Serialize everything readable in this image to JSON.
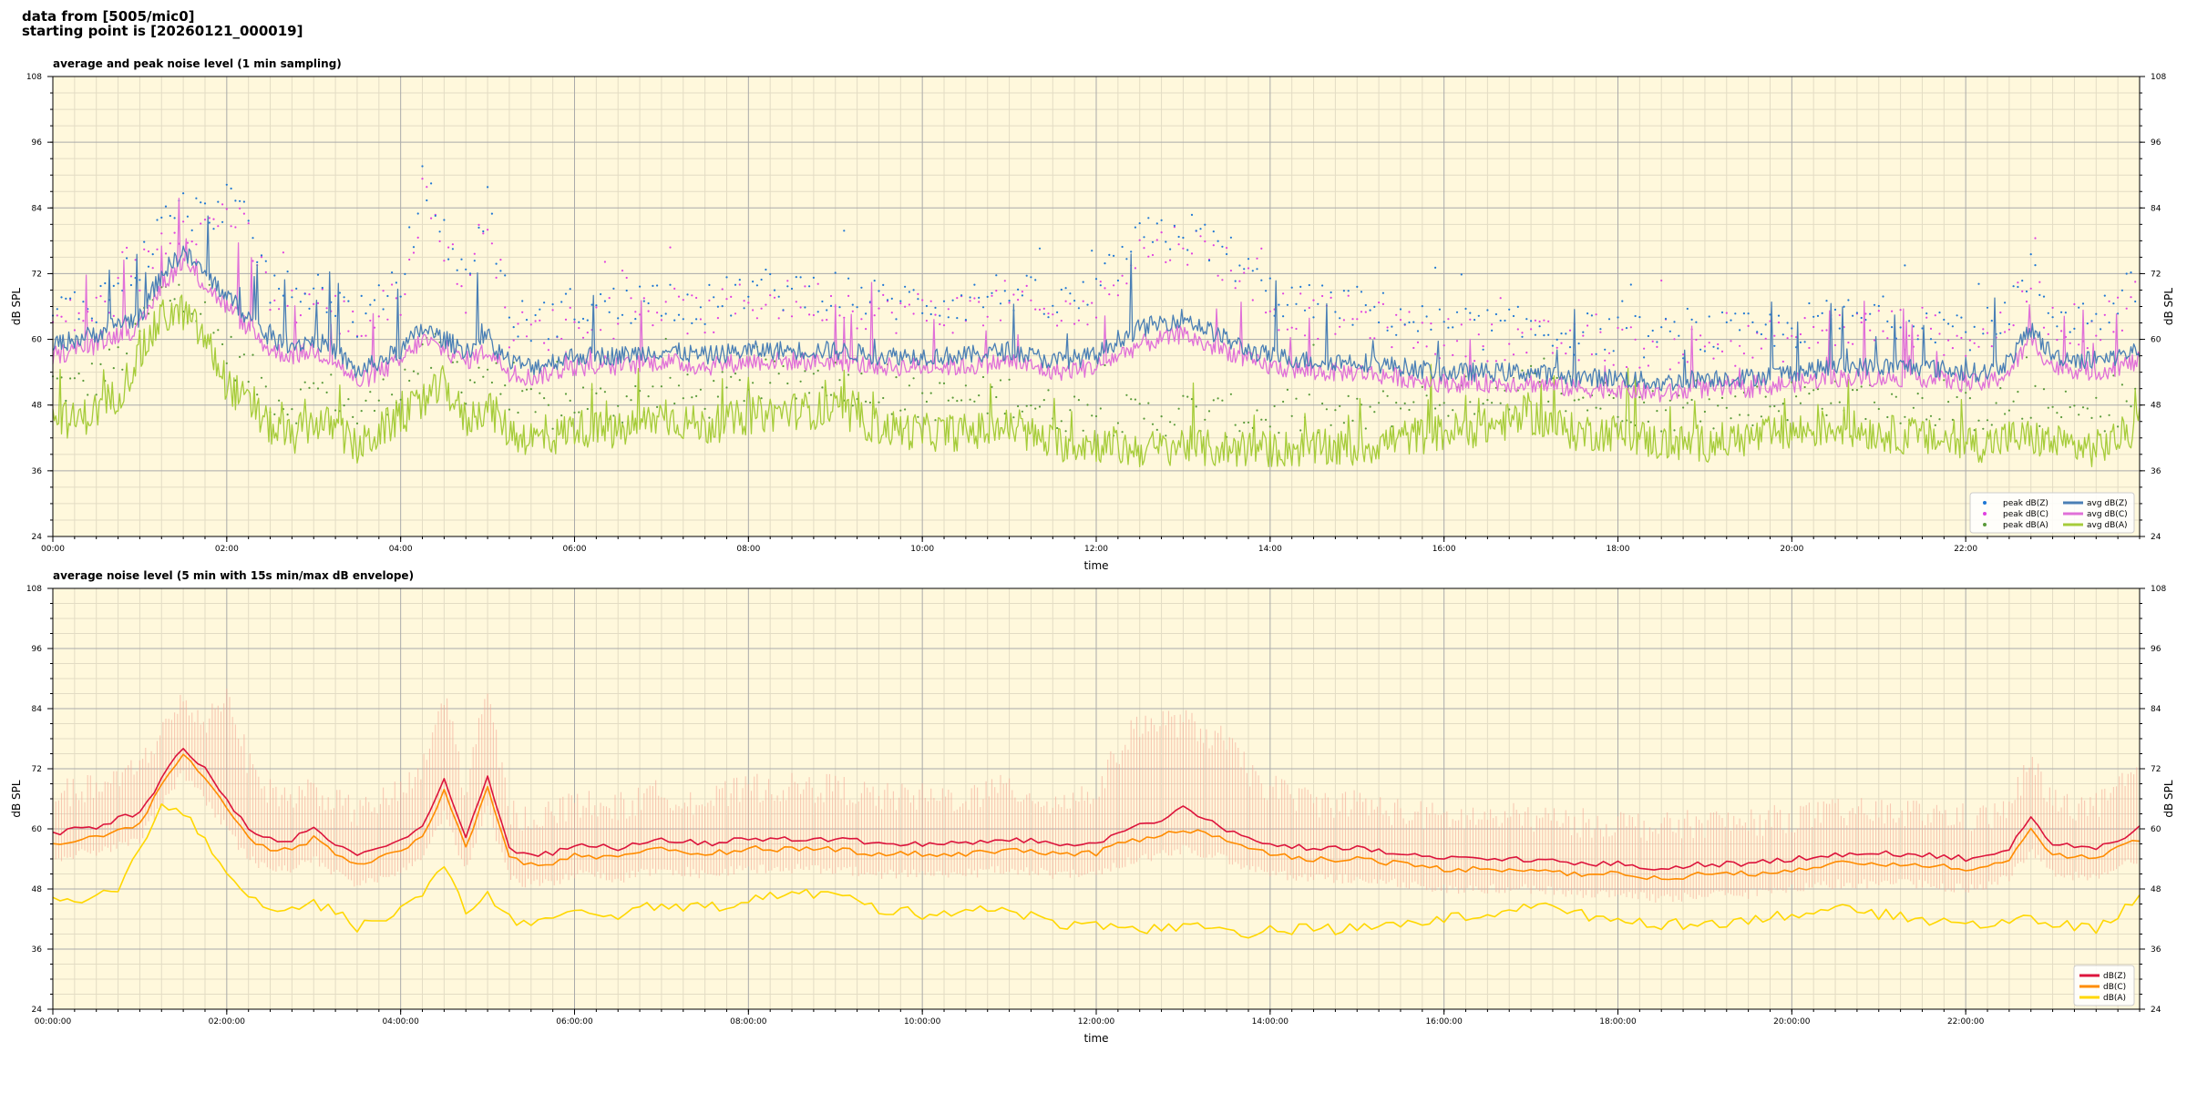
{
  "header": {
    "line1": "data from [5005/mic0]",
    "line2": "starting point is [20260121_000019]"
  },
  "colors": {
    "plot_bg": "#fff8dc",
    "grid_major": "#aaaaaa",
    "grid_minor": "#e3dcc4",
    "peak_z": "#1f77d4",
    "peak_c": "#e040e0",
    "peak_a": "#5a9a3a",
    "avg_z": "#4a7fb5",
    "avg_c": "#e070d8",
    "avg_a": "#a6cc3a",
    "z_5min": "#dc143c",
    "c_5min": "#ff8c00",
    "a_5min": "#ffd700",
    "envelope": "#f4a896"
  },
  "chart_data": [
    {
      "type": "line",
      "title": "average and peak noise level (1 min sampling)",
      "xlabel": "time",
      "ylabel": "dB SPL",
      "ylabel_right": "dB SPL",
      "ylim": [
        24,
        108
      ],
      "y_ticks": [
        "24",
        "36",
        "48",
        "60",
        "72",
        "84",
        "96",
        "108"
      ],
      "x_range_hours": [
        0,
        24
      ],
      "x_ticks": [
        "00:00",
        "02:00",
        "04:00",
        "06:00",
        "08:00",
        "10:00",
        "12:00",
        "14:00",
        "16:00",
        "18:00",
        "20:00",
        "22:00"
      ],
      "grid": true,
      "legend_position": "lower-right",
      "legend": [
        "peak dB(Z)",
        "peak dB(C)",
        "peak dB(A)",
        "avg dB(Z)",
        "avg dB(C)",
        "avg dB(A)"
      ],
      "x": [
        0,
        0.25,
        0.5,
        0.75,
        1,
        1.25,
        1.5,
        1.75,
        2,
        2.25,
        2.5,
        2.75,
        3,
        3.25,
        3.5,
        3.75,
        4,
        4.25,
        4.5,
        4.75,
        5,
        5.25,
        5.5,
        5.75,
        6,
        6.5,
        7,
        7.5,
        8,
        8.5,
        9,
        9.5,
        10,
        10.5,
        11,
        11.5,
        12,
        12.25,
        12.5,
        12.75,
        13,
        13.25,
        13.5,
        13.75,
        14,
        14.5,
        15,
        15.5,
        16,
        16.5,
        17,
        17.5,
        18,
        18.5,
        19,
        19.5,
        20,
        20.5,
        21,
        21.5,
        22,
        22.25,
        22.5,
        22.75,
        23,
        23.5,
        24
      ],
      "series": [
        {
          "name": "avg dB(Z)",
          "values": [
            59,
            60,
            61,
            63,
            64,
            72,
            76,
            72,
            68,
            64,
            60,
            59,
            60,
            58,
            54,
            56,
            58,
            62,
            60,
            58,
            60,
            56,
            55,
            56,
            57,
            57,
            58,
            57,
            58,
            58,
            58,
            57,
            57,
            57,
            58,
            56,
            57,
            60,
            62,
            63,
            64,
            62,
            60,
            58,
            57,
            56,
            56,
            55,
            54,
            54,
            54,
            53,
            53,
            52,
            53,
            53,
            54,
            55,
            55,
            55,
            54,
            54,
            56,
            62,
            57,
            56,
            58
          ]
        },
        {
          "name": "avg dB(C)",
          "values": [
            57,
            58,
            59,
            61,
            62,
            70,
            74,
            70,
            66,
            62,
            58,
            57,
            58,
            56,
            52,
            54,
            56,
            60,
            58,
            56,
            58,
            54,
            53,
            54,
            55,
            55,
            56,
            55,
            56,
            56,
            56,
            55,
            55,
            55,
            56,
            54,
            55,
            57,
            59,
            60,
            61,
            59,
            58,
            56,
            55,
            54,
            54,
            53,
            52,
            52,
            52,
            51,
            51,
            50,
            51,
            51,
            52,
            53,
            53,
            53,
            52,
            52,
            54,
            60,
            55,
            54,
            56
          ]
        },
        {
          "name": "avg dB(A)",
          "values": [
            46,
            45,
            47,
            50,
            57,
            64,
            65,
            60,
            52,
            48,
            44,
            42,
            45,
            44,
            40,
            43,
            46,
            48,
            52,
            45,
            48,
            43,
            42,
            42,
            44,
            43,
            46,
            44,
            46,
            47,
            47,
            44,
            43,
            43,
            44,
            41,
            41,
            40,
            40,
            40,
            41,
            40,
            40,
            40,
            40,
            40,
            40,
            42,
            43,
            44,
            46,
            43,
            43,
            41,
            41,
            42,
            43,
            44,
            43,
            42,
            41,
            41,
            42,
            42,
            41,
            40,
            44
          ]
        },
        {
          "name": "peak dB(Z)",
          "values": [
            65,
            66,
            67,
            70,
            74,
            80,
            84,
            82,
            86,
            80,
            70,
            68,
            70,
            67,
            64,
            66,
            70,
            88,
            80,
            70,
            86,
            64,
            63,
            64,
            66,
            66,
            68,
            66,
            69,
            69,
            69,
            67,
            67,
            67,
            69,
            66,
            68,
            74,
            78,
            79,
            80,
            78,
            76,
            72,
            68,
            66,
            66,
            64,
            62,
            62,
            62,
            61,
            61,
            60,
            61,
            61,
            62,
            64,
            64,
            64,
            62,
            62,
            66,
            72,
            65,
            64,
            70
          ]
        },
        {
          "name": "peak dB(C)",
          "values": [
            63,
            64,
            65,
            68,
            72,
            78,
            82,
            80,
            84,
            78,
            68,
            66,
            68,
            65,
            62,
            64,
            68,
            86,
            78,
            68,
            84,
            62,
            61,
            62,
            64,
            64,
            66,
            64,
            67,
            67,
            67,
            65,
            65,
            65,
            67,
            64,
            66,
            72,
            76,
            77,
            78,
            76,
            74,
            70,
            66,
            64,
            64,
            62,
            60,
            60,
            60,
            59,
            59,
            58,
            59,
            59,
            60,
            62,
            62,
            62,
            60,
            60,
            64,
            70,
            63,
            62,
            68
          ]
        },
        {
          "name": "peak dB(A)",
          "values": [
            52,
            51,
            53,
            56,
            62,
            68,
            68,
            64,
            58,
            54,
            50,
            48,
            51,
            50,
            46,
            49,
            52,
            56,
            58,
            52,
            55,
            48,
            47,
            47,
            49,
            48,
            51,
            49,
            52,
            53,
            53,
            50,
            49,
            49,
            50,
            47,
            47,
            46,
            46,
            46,
            47,
            46,
            46,
            46,
            46,
            46,
            46,
            48,
            49,
            50,
            52,
            49,
            49,
            47,
            47,
            48,
            49,
            50,
            49,
            48,
            47,
            47,
            48,
            48,
            47,
            46,
            50
          ]
        }
      ]
    },
    {
      "type": "line",
      "title": "average noise level (5 min with 15s min/max dB envelope)",
      "xlabel": "time",
      "ylabel": "dB SPL",
      "ylabel_right": "dB SPL",
      "ylim": [
        24,
        108
      ],
      "y_ticks": [
        "24",
        "36",
        "48",
        "60",
        "72",
        "84",
        "96",
        "108"
      ],
      "x_range_hours": [
        0,
        24
      ],
      "x_ticks": [
        "00:00:00",
        "02:00:00",
        "04:00:00",
        "06:00:00",
        "08:00:00",
        "10:00:00",
        "12:00:00",
        "14:00:00",
        "16:00:00",
        "18:00:00",
        "20:00:00",
        "22:00:00"
      ],
      "grid": true,
      "legend_position": "lower-right",
      "legend": [
        "dB(Z)",
        "dB(C)",
        "dB(A)"
      ],
      "x": [
        0,
        0.25,
        0.5,
        0.75,
        1,
        1.25,
        1.5,
        1.75,
        2,
        2.25,
        2.5,
        2.75,
        3,
        3.25,
        3.5,
        3.75,
        4,
        4.25,
        4.5,
        4.75,
        5,
        5.25,
        5.5,
        5.75,
        6,
        6.5,
        7,
        7.5,
        8,
        8.5,
        9,
        9.5,
        10,
        10.5,
        11,
        11.5,
        12,
        12.25,
        12.5,
        12.75,
        13,
        13.25,
        13.5,
        13.75,
        14,
        14.5,
        15,
        15.5,
        16,
        16.5,
        17,
        17.5,
        18,
        18.5,
        19,
        19.5,
        20,
        20.5,
        21,
        21.5,
        22,
        22.25,
        22.5,
        22.75,
        23,
        23.5,
        24
      ],
      "series": [
        {
          "name": "dB(Z)",
          "values": [
            59,
            60,
            60,
            62,
            63,
            70,
            76,
            72,
            66,
            60,
            58,
            58,
            60,
            57,
            55,
            56,
            58,
            60,
            70,
            58,
            71,
            56,
            55,
            55,
            57,
            56,
            58,
            57,
            58,
            58,
            58,
            57,
            57,
            57,
            58,
            57,
            57,
            59,
            61,
            62,
            64,
            62,
            60,
            58,
            57,
            56,
            56,
            55,
            54,
            54,
            54,
            53,
            53,
            52,
            53,
            53,
            54,
            55,
            55,
            55,
            54,
            55,
            56,
            62,
            57,
            56,
            60
          ]
        },
        {
          "name": "dB(C)",
          "values": [
            57,
            58,
            58,
            60,
            61,
            69,
            75,
            70,
            64,
            58,
            56,
            56,
            58,
            55,
            53,
            54,
            56,
            58,
            68,
            56,
            69,
            54,
            53,
            53,
            55,
            54,
            56,
            55,
            56,
            56,
            56,
            55,
            55,
            55,
            56,
            55,
            55,
            57,
            58,
            59,
            60,
            59,
            58,
            56,
            55,
            54,
            54,
            53,
            52,
            52,
            52,
            51,
            51,
            50,
            51,
            51,
            52,
            53,
            53,
            53,
            52,
            53,
            54,
            60,
            55,
            54,
            58
          ]
        },
        {
          "name": "dB(A)",
          "values": [
            46,
            45,
            46,
            48,
            57,
            64,
            63,
            58,
            52,
            47,
            44,
            44,
            45,
            44,
            40,
            42,
            44,
            47,
            52,
            44,
            47,
            42,
            41,
            42,
            43,
            43,
            45,
            44,
            46,
            47,
            47,
            44,
            43,
            44,
            44,
            41,
            41,
            41,
            40,
            40,
            41,
            40,
            40,
            39,
            40,
            40,
            40,
            41,
            42,
            43,
            45,
            43,
            42,
            41,
            41,
            42,
            43,
            44,
            43,
            42,
            41,
            41,
            42,
            42,
            41,
            40,
            46
          ]
        },
        {
          "name": "envelope max",
          "values": [
            66,
            66,
            67,
            68,
            72,
            78,
            84,
            80,
            86,
            72,
            66,
            65,
            67,
            64,
            62,
            64,
            66,
            70,
            86,
            66,
            86,
            62,
            61,
            62,
            64,
            63,
            66,
            64,
            67,
            67,
            67,
            65,
            65,
            65,
            67,
            64,
            66,
            74,
            80,
            80,
            80,
            78,
            76,
            70,
            67,
            64,
            64,
            62,
            61,
            61,
            61,
            60,
            60,
            59,
            60,
            60,
            61,
            62,
            62,
            62,
            61,
            61,
            63,
            72,
            64,
            63,
            70
          ]
        },
        {
          "name": "envelope min",
          "values": [
            55,
            56,
            56,
            58,
            59,
            66,
            72,
            67,
            61,
            55,
            53,
            53,
            55,
            52,
            50,
            51,
            53,
            55,
            64,
            53,
            65,
            51,
            50,
            50,
            52,
            51,
            53,
            52,
            53,
            53,
            53,
            52,
            52,
            52,
            53,
            52,
            52,
            54,
            55,
            56,
            57,
            56,
            55,
            53,
            52,
            51,
            51,
            50,
            49,
            49,
            49,
            48,
            48,
            47,
            48,
            48,
            49,
            50,
            50,
            50,
            49,
            50,
            51,
            57,
            52,
            51,
            55
          ]
        }
      ]
    }
  ]
}
